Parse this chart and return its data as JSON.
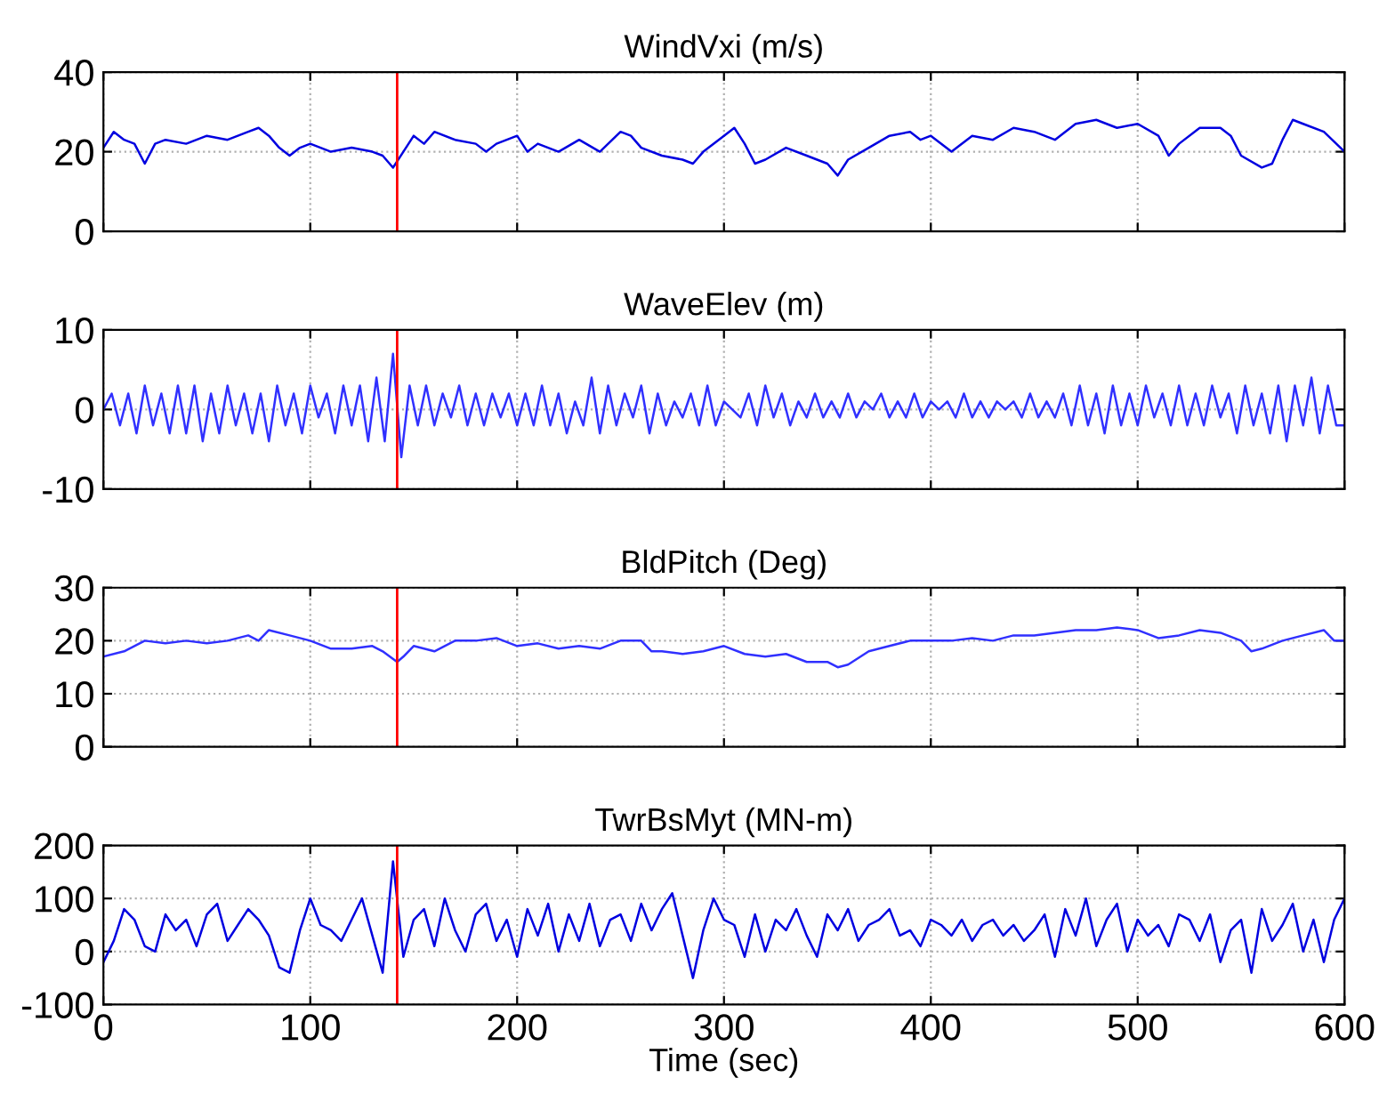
{
  "chart_data": [
    {
      "type": "line",
      "title": "WindVxi (m/s)",
      "xlim": [
        0,
        600
      ],
      "xticks": [
        0,
        100,
        200,
        300,
        400,
        500,
        600
      ],
      "ylim": [
        0,
        40
      ],
      "yticks": [
        0,
        20,
        40
      ],
      "grid": true,
      "tick_labels": "y",
      "ref_lines": [
        {
          "axis": "x",
          "value": 142,
          "color": "#ff0000"
        }
      ],
      "series": [
        {
          "color": "#0000e0",
          "x": [
            0,
            5,
            10,
            15,
            20,
            25,
            30,
            40,
            50,
            60,
            70,
            75,
            80,
            85,
            90,
            95,
            100,
            110,
            120,
            130,
            135,
            140,
            145,
            150,
            155,
            160,
            170,
            180,
            185,
            190,
            200,
            205,
            210,
            220,
            230,
            240,
            250,
            255,
            260,
            270,
            280,
            285,
            290,
            300,
            305,
            310,
            315,
            320,
            330,
            340,
            350,
            355,
            360,
            370,
            380,
            390,
            395,
            400,
            410,
            420,
            430,
            440,
            450,
            460,
            470,
            480,
            490,
            500,
            510,
            515,
            520,
            530,
            540,
            545,
            550,
            560,
            565,
            570,
            575,
            580,
            590,
            600
          ],
          "values": [
            21,
            25,
            23,
            22,
            17,
            22,
            23,
            22,
            24,
            23,
            25,
            26,
            24,
            21,
            19,
            21,
            22,
            20,
            21,
            20,
            19,
            16,
            20,
            24,
            22,
            25,
            23,
            22,
            20,
            22,
            24,
            20,
            22,
            20,
            23,
            20,
            25,
            24,
            21,
            19,
            18,
            17,
            20,
            24,
            26,
            22,
            17,
            18,
            21,
            19,
            17,
            14,
            18,
            21,
            24,
            25,
            23,
            24,
            20,
            24,
            23,
            26,
            25,
            23,
            27,
            28,
            26,
            27,
            24,
            19,
            22,
            26,
            26,
            24,
            19,
            16,
            17,
            23,
            28,
            27,
            25,
            20
          ]
        }
      ]
    },
    {
      "type": "line",
      "title": "WaveElev (m)",
      "xlim": [
        0,
        600
      ],
      "xticks": [
        0,
        100,
        200,
        300,
        400,
        500,
        600
      ],
      "ylim": [
        -10,
        10
      ],
      "yticks": [
        -10,
        0,
        10
      ],
      "grid": true,
      "tick_labels": "y",
      "ref_lines": [
        {
          "axis": "x",
          "value": 142,
          "color": "#ff0000"
        }
      ],
      "series": [
        {
          "color": "#3030ff",
          "x": [
            0,
            4,
            8,
            12,
            16,
            20,
            24,
            28,
            32,
            36,
            40,
            44,
            48,
            52,
            56,
            60,
            64,
            68,
            72,
            76,
            80,
            84,
            88,
            92,
            96,
            100,
            104,
            108,
            112,
            116,
            120,
            124,
            128,
            132,
            136,
            140,
            144,
            148,
            152,
            156,
            160,
            164,
            168,
            172,
            176,
            180,
            184,
            188,
            192,
            196,
            200,
            204,
            208,
            212,
            216,
            220,
            224,
            228,
            232,
            236,
            240,
            244,
            248,
            252,
            256,
            260,
            264,
            268,
            272,
            276,
            280,
            284,
            288,
            292,
            296,
            300,
            304,
            308,
            312,
            316,
            320,
            324,
            328,
            332,
            336,
            340,
            344,
            348,
            352,
            356,
            360,
            364,
            368,
            372,
            376,
            380,
            384,
            388,
            392,
            396,
            400,
            404,
            408,
            412,
            416,
            420,
            424,
            428,
            432,
            436,
            440,
            444,
            448,
            452,
            456,
            460,
            464,
            468,
            472,
            476,
            480,
            484,
            488,
            492,
            496,
            500,
            504,
            508,
            512,
            516,
            520,
            524,
            528,
            532,
            536,
            540,
            544,
            548,
            552,
            556,
            560,
            564,
            568,
            572,
            576,
            580,
            584,
            588,
            592,
            596,
            600
          ],
          "values": [
            0,
            2,
            -2,
            2,
            -3,
            3,
            -2,
            2,
            -3,
            3,
            -3,
            3,
            -4,
            2,
            -3,
            3,
            -2,
            2,
            -3,
            2,
            -4,
            3,
            -2,
            2,
            -3,
            3,
            -1,
            2,
            -3,
            3,
            -2,
            3,
            -4,
            4,
            -4,
            7,
            -6,
            3,
            -2,
            3,
            -2,
            2,
            -1,
            3,
            -2,
            2,
            -2,
            2,
            -1,
            2,
            -2,
            2,
            -2,
            3,
            -2,
            2,
            -3,
            1,
            -2,
            4,
            -3,
            3,
            -2,
            2,
            -1,
            3,
            -3,
            2,
            -2,
            1,
            -1,
            2,
            -2,
            3,
            -2,
            1,
            0,
            -1,
            2,
            -2,
            3,
            -1,
            2,
            -2,
            1,
            -1,
            2,
            -1,
            1,
            -1,
            2,
            -1,
            1,
            0,
            2,
            -1,
            1,
            -1,
            2,
            -1,
            1,
            0,
            1,
            -1,
            2,
            -1,
            1,
            -1,
            1,
            0,
            1,
            -1,
            2,
            -1,
            1,
            -1,
            2,
            -2,
            3,
            -2,
            2,
            -3,
            3,
            -2,
            2,
            -2,
            3,
            -1,
            2,
            -2,
            3,
            -2,
            2,
            -2,
            3,
            -1,
            2,
            -3,
            3,
            -2,
            2,
            -3,
            3,
            -4,
            3,
            -2,
            4,
            -3,
            3,
            -2,
            -2
          ]
        }
      ]
    },
    {
      "type": "line",
      "title": "BldPitch (Deg)",
      "xlim": [
        0,
        600
      ],
      "xticks": [
        0,
        100,
        200,
        300,
        400,
        500,
        600
      ],
      "ylim": [
        0,
        30
      ],
      "yticks": [
        0,
        10,
        20,
        30
      ],
      "grid": true,
      "tick_labels": "y",
      "ref_lines": [
        {
          "axis": "x",
          "value": 142,
          "color": "#ff0000"
        }
      ],
      "series": [
        {
          "color": "#3030ff",
          "x": [
            0,
            10,
            20,
            30,
            40,
            50,
            60,
            70,
            75,
            80,
            90,
            100,
            110,
            120,
            130,
            135,
            142,
            145,
            150,
            160,
            170,
            180,
            190,
            200,
            210,
            220,
            230,
            240,
            250,
            260,
            265,
            270,
            280,
            290,
            300,
            310,
            320,
            330,
            340,
            350,
            355,
            360,
            370,
            380,
            390,
            400,
            410,
            420,
            430,
            440,
            450,
            460,
            470,
            480,
            490,
            500,
            510,
            520,
            530,
            540,
            550,
            555,
            560,
            570,
            580,
            590,
            595,
            600
          ],
          "values": [
            17,
            18,
            20,
            19.5,
            20,
            19.5,
            20,
            21,
            20,
            22,
            21,
            20,
            18.5,
            18.5,
            19,
            18,
            16,
            17,
            19,
            18,
            20,
            20,
            20.5,
            19,
            19.5,
            18.5,
            19,
            18.5,
            20,
            20,
            18,
            18,
            17.5,
            18,
            19,
            17.5,
            17,
            17.5,
            16,
            16,
            15,
            15.5,
            18,
            19,
            20,
            20,
            20,
            20.5,
            20,
            21,
            21,
            21.5,
            22,
            22,
            22.5,
            22,
            20.5,
            21,
            22,
            21.5,
            20,
            18,
            18.5,
            20,
            21,
            22,
            20,
            20
          ]
        }
      ]
    },
    {
      "type": "line",
      "title": "TwrBsMyt (MN-m)",
      "xlabel": "Time (sec)",
      "xlim": [
        0,
        600
      ],
      "xticks": [
        0,
        100,
        200,
        300,
        400,
        500,
        600
      ],
      "ylim": [
        -100,
        200
      ],
      "yticks": [
        -100,
        0,
        100,
        200
      ],
      "grid": true,
      "ref_lines": [
        {
          "axis": "x",
          "value": 142,
          "color": "#ff0000"
        }
      ],
      "series": [
        {
          "color": "#0000e0",
          "x": [
            0,
            5,
            10,
            15,
            20,
            25,
            30,
            35,
            40,
            45,
            50,
            55,
            60,
            65,
            70,
            75,
            80,
            85,
            90,
            95,
            100,
            105,
            110,
            115,
            120,
            125,
            130,
            135,
            140,
            145,
            150,
            155,
            160,
            165,
            170,
            175,
            180,
            185,
            190,
            195,
            200,
            205,
            210,
            215,
            220,
            225,
            230,
            235,
            240,
            245,
            250,
            255,
            260,
            265,
            270,
            275,
            280,
            285,
            290,
            295,
            300,
            305,
            310,
            315,
            320,
            325,
            330,
            335,
            340,
            345,
            350,
            355,
            360,
            365,
            370,
            375,
            380,
            385,
            390,
            395,
            400,
            405,
            410,
            415,
            420,
            425,
            430,
            435,
            440,
            445,
            450,
            455,
            460,
            465,
            470,
            475,
            480,
            485,
            490,
            495,
            500,
            505,
            510,
            515,
            520,
            525,
            530,
            535,
            540,
            545,
            550,
            555,
            560,
            565,
            570,
            575,
            580,
            585,
            590,
            595,
            600
          ],
          "values": [
            -20,
            20,
            80,
            60,
            10,
            0,
            70,
            40,
            60,
            10,
            70,
            90,
            20,
            50,
            80,
            60,
            30,
            -30,
            -40,
            40,
            100,
            50,
            40,
            20,
            60,
            100,
            30,
            -40,
            170,
            -10,
            60,
            80,
            10,
            100,
            40,
            0,
            70,
            90,
            20,
            60,
            -10,
            80,
            30,
            90,
            0,
            70,
            20,
            90,
            10,
            60,
            70,
            20,
            90,
            40,
            80,
            110,
            30,
            -50,
            40,
            100,
            60,
            50,
            -10,
            70,
            0,
            60,
            40,
            80,
            30,
            -10,
            70,
            40,
            80,
            20,
            50,
            60,
            80,
            30,
            40,
            10,
            60,
            50,
            30,
            60,
            20,
            50,
            60,
            30,
            50,
            20,
            40,
            70,
            -10,
            80,
            30,
            100,
            10,
            60,
            90,
            0,
            60,
            30,
            50,
            10,
            70,
            60,
            20,
            70,
            -20,
            40,
            60,
            -40,
            80,
            20,
            50,
            90,
            0,
            60,
            -20,
            60,
            100
          ]
        }
      ]
    }
  ]
}
